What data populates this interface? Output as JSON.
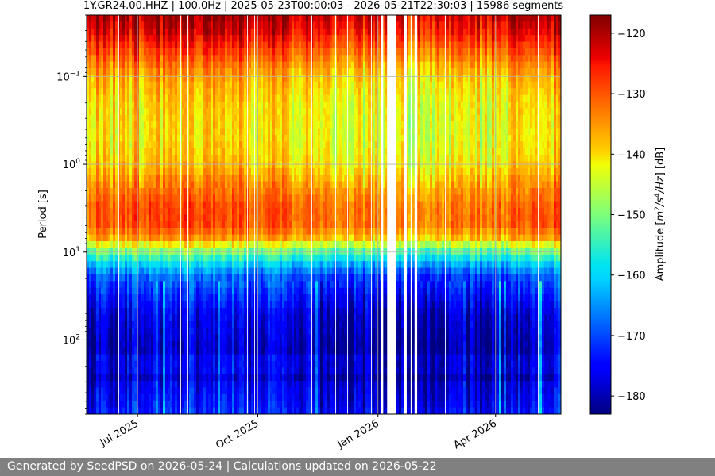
{
  "chart_data": {
    "type": "heatmap",
    "title": "1Y.GR24.00.HHZ | 100.0Hz | 2025-05-23T00:00:03 - 2026-05-21T22:30:03 | 15986 segments",
    "ylabel": "Period [s]",
    "xlabel": "",
    "y_scale": "log",
    "y_inverted": true,
    "ylim": [
      0.02,
      700
    ],
    "y_ticks": [
      {
        "value": 0.1,
        "label": "10",
        "exp": "−1"
      },
      {
        "value": 1,
        "label": "10",
        "exp": "0"
      },
      {
        "value": 10,
        "label": "10",
        "exp": "1"
      },
      {
        "value": 100,
        "label": "10",
        "exp": "2"
      }
    ],
    "x_axis_type": "date",
    "xlim": [
      "2025-05-23",
      "2026-05-21"
    ],
    "x_ticks": [
      {
        "value": "2025-07-01",
        "label": "Jul 2025"
      },
      {
        "value": "2025-10-01",
        "label": "Oct 2025"
      },
      {
        "value": "2026-01-01",
        "label": "Jan 2026"
      },
      {
        "value": "2026-04-01",
        "label": "Apr 2026"
      }
    ],
    "grid": true,
    "colorbar": {
      "label": "Amplitude [m²/s⁴/Hz] [dB]",
      "label_main": "Amplitude [",
      "label_unit_m": "m",
      "label_unit_m_exp": "2",
      "label_unit_s": "/s",
      "label_unit_s_exp": "4",
      "label_unit_tail": "/Hz",
      "label_end": "] [dB]",
      "range": [
        -183,
        -117
      ],
      "ticks": [
        -120,
        -130,
        -140,
        -150,
        -160,
        -170,
        -180
      ],
      "tick_labels": [
        "−120",
        "−130",
        "−140",
        "−150",
        "−160",
        "−170",
        "−180"
      ],
      "colormap": "jet"
    },
    "data_gaps": [
      [
        "2026-01-03",
        "2026-01-05"
      ],
      [
        "2026-01-08",
        "2026-01-15"
      ],
      [
        "2026-01-21",
        "2026-01-23"
      ],
      [
        "2026-01-26",
        "2026-01-27"
      ],
      [
        "2026-01-29",
        "2026-01-31"
      ]
    ],
    "profile": {
      "period_s": [
        0.02,
        0.03,
        0.05,
        0.1,
        0.2,
        0.5,
        1,
        2,
        3,
        5,
        7,
        10,
        15,
        20,
        50,
        100,
        200,
        500,
        700
      ],
      "amplitude_db": [
        -121,
        -124,
        -130,
        -138,
        -141,
        -142,
        -140,
        -134,
        -131,
        -131,
        -137,
        -152,
        -164,
        -170,
        -178,
        -180,
        -181,
        -178,
        -176
      ]
    }
  },
  "footer": {
    "text": "Generated by SeedPSD on 2026-05-24 | Calculations updated on 2026-05-22"
  }
}
